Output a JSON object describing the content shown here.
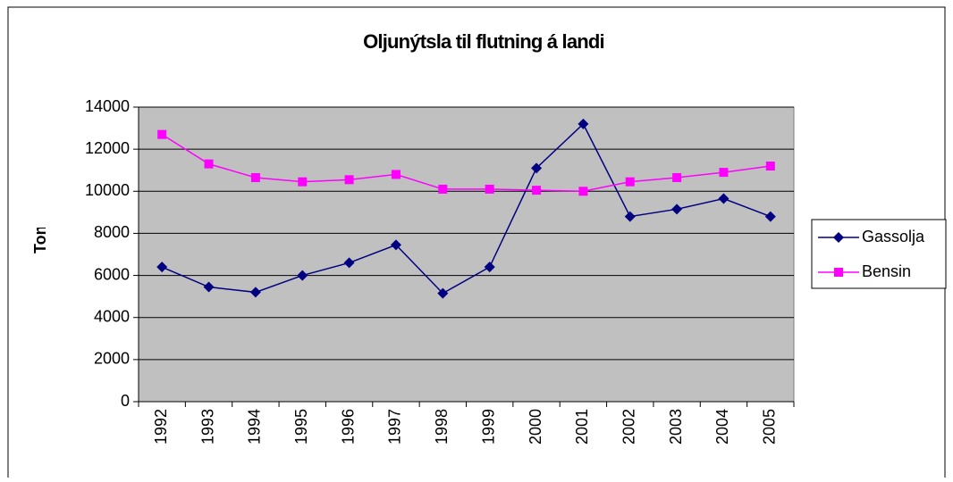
{
  "chart_data": {
    "type": "line",
    "title": "Oljunýtsla til flutning á landi",
    "y_label": "Tons",
    "categories": [
      "1992",
      "1993",
      "1994",
      "1995",
      "1996",
      "1997",
      "1998",
      "1999",
      "2000",
      "2001",
      "2002",
      "2003",
      "2004",
      "2005"
    ],
    "series": [
      {
        "name": "Gassolja",
        "color": "#000080",
        "marker": "diamond",
        "values": [
          6400,
          5450,
          5200,
          6000,
          6600,
          7450,
          5150,
          6400,
          11100,
          13200,
          8800,
          9150,
          9650,
          8800
        ]
      },
      {
        "name": "Bensin",
        "color": "#ff00ff",
        "marker": "square",
        "values": [
          12700,
          11300,
          10650,
          10450,
          10550,
          10800,
          10100,
          10100,
          10050,
          10000,
          10450,
          10650,
          10900,
          11200
        ]
      }
    ],
    "ylim": [
      0,
      14000
    ],
    "yticks": [
      0,
      2000,
      4000,
      6000,
      8000,
      10000,
      12000,
      14000
    ],
    "grid": true,
    "legend": "right",
    "plot_background": "#c0c0c0"
  }
}
